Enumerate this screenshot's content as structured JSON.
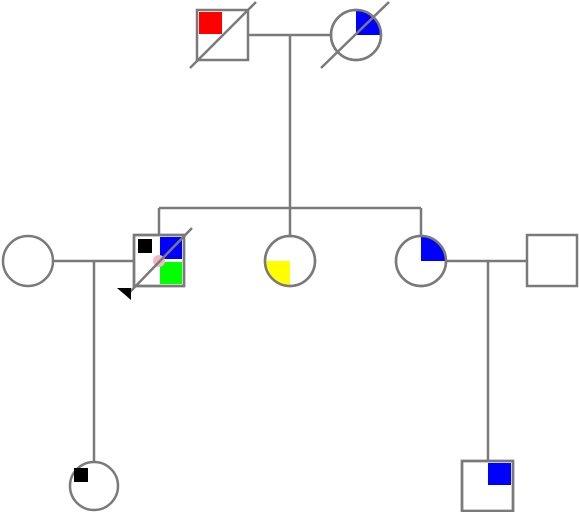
{
  "pedigree": {
    "title": "",
    "colors": {
      "line": "#7a7a7a",
      "red": "#ff0000",
      "blue": "#0000ff",
      "green": "#00ff00",
      "yellow": "#ffff00",
      "black": "#000000",
      "pink": "#f4b8c0"
    },
    "individuals": [
      {
        "id": "grandfather",
        "sex": "male",
        "deceased": true,
        "markers": [
          "red-upper-left-quadrant"
        ]
      },
      {
        "id": "grandmother",
        "sex": "female",
        "deceased": true,
        "markers": [
          "blue-upper-right-quadrant"
        ]
      },
      {
        "id": "mother-in-law",
        "sex": "female",
        "deceased": false,
        "markers": []
      },
      {
        "id": "proband",
        "sex": "male",
        "deceased": true,
        "proband": true,
        "markers": [
          "black-upper-left-square",
          "blue-upper-right-quadrant",
          "green-lower-right-quadrant",
          "pink-center-dot"
        ]
      },
      {
        "id": "daughter",
        "sex": "female",
        "deceased": false,
        "markers": [
          "yellow-lower-left-quadrant"
        ]
      },
      {
        "id": "daughter-2",
        "sex": "female",
        "deceased": false,
        "markers": [
          "blue-upper-right-quadrant"
        ]
      },
      {
        "id": "spouse-of-daughter-2",
        "sex": "male",
        "deceased": false,
        "markers": []
      },
      {
        "id": "granddaughter",
        "sex": "female",
        "deceased": false,
        "markers": [
          "black-upper-left-square"
        ]
      },
      {
        "id": "grandson",
        "sex": "male",
        "deceased": false,
        "markers": [
          "blue-upper-right-quadrant"
        ]
      }
    ]
  }
}
